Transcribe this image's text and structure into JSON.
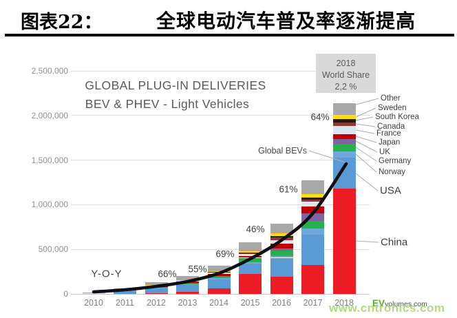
{
  "header": {
    "figure_label": "图表22：",
    "title": "全球电动汽车普及率逐渐提高"
  },
  "chart_data": {
    "type": "bar",
    "subtype": "stacked-bars-with-yoy-line",
    "title_lines": [
      "GLOBAL PLUG-IN DELIVERIES",
      "BEV & PHEV - Light Vehicles"
    ],
    "categories": [
      "2010",
      "2011",
      "2012",
      "2013",
      "2014",
      "2015",
      "2016",
      "2017",
      "2018"
    ],
    "unit": "vehicles",
    "ylim": [
      0,
      2500000
    ],
    "y_ticks": [
      "0",
      "500,000",
      "1,000,000",
      "1,500,000",
      "2,000,000",
      "2,500,000"
    ],
    "grid": true,
    "series": [
      {
        "name": "China",
        "color": "#ec1c24",
        "values": [
          0,
          0,
          8000,
          25000,
          60000,
          225000,
          190000,
          325000,
          1180000
        ]
      },
      {
        "name": "USA",
        "color": "#5b9bd5",
        "values": [
          5000,
          40000,
          60000,
          75000,
          105000,
          115000,
          215000,
          335000,
          350000
        ]
      },
      {
        "name": "Norway",
        "color": "#6fa8dc",
        "values": [
          0,
          2000,
          5000,
          12000,
          15000,
          15000,
          20000,
          70000,
          70000
        ]
      },
      {
        "name": "Germany",
        "color": "#27b04b",
        "values": [
          0,
          1000,
          3000,
          5000,
          10000,
          35000,
          60000,
          85000,
          80000
        ]
      },
      {
        "name": "UK",
        "color": "#8064a2",
        "values": [
          0,
          1000,
          4000,
          5000,
          10000,
          15000,
          25000,
          90000,
          55000
        ]
      },
      {
        "name": "Japan",
        "color": "#c00000",
        "values": [
          1000,
          5000,
          10000,
          18000,
          25000,
          20000,
          55000,
          75000,
          55000
        ]
      },
      {
        "name": "France",
        "color": "#dbe5f1",
        "values": [
          1000,
          3000,
          6000,
          10000,
          15000,
          25000,
          40000,
          50000,
          90000
        ]
      },
      {
        "name": "Canada",
        "color": "#8c3b34",
        "values": [
          0,
          1000,
          2000,
          3000,
          5000,
          10000,
          25000,
          30000,
          45000
        ]
      },
      {
        "name": "South Korea",
        "color": "#1f1a17",
        "values": [
          0,
          0,
          0,
          1000,
          2000,
          5000,
          20000,
          20000,
          35000
        ]
      },
      {
        "name": "Sweden",
        "color": "#ffe000",
        "values": [
          0,
          1000,
          2000,
          3000,
          8000,
          10000,
          30000,
          40000,
          45000
        ]
      },
      {
        "name": "(orange stripe)",
        "color": "#e2a243",
        "values": [
          0,
          0,
          0,
          0,
          0,
          10000,
          15000,
          0,
          0
        ]
      },
      {
        "name": "Other",
        "color": "#a8a8a8",
        "values": [
          5000,
          8000,
          30000,
          40000,
          65000,
          90000,
          95000,
          150000,
          130000
        ]
      }
    ],
    "yoy_line": {
      "label": "Y-O-Y",
      "color": "#0e0e15",
      "growth_labels": [
        {
          "year": "2012",
          "text": "66%"
        },
        {
          "year": "2013",
          "text": "55%"
        },
        {
          "year": "2014",
          "text": "69%"
        },
        {
          "year": "2015",
          "text": "46%"
        },
        {
          "year": "2017",
          "text": "61%"
        },
        {
          "year": "2018",
          "text": "64%"
        }
      ],
      "curve_values": [
        23000,
        46000,
        85000,
        139000,
        231000,
        393000,
        602000,
        903000,
        1458000
      ]
    },
    "annotations": {
      "world_share_box": {
        "lines": [
          "2018",
          "World Share",
          "2,2 %"
        ]
      },
      "global_bevs": "Global BEVs"
    },
    "legend": [
      {
        "label": "Other"
      },
      {
        "label": "Sweden"
      },
      {
        "label": "South Korea"
      },
      {
        "label": "Canada"
      },
      {
        "label": "France"
      },
      {
        "label": "Japan"
      },
      {
        "label": "UK"
      },
      {
        "label": "Germany"
      },
      {
        "label": "Norway"
      },
      {
        "label": "USA"
      },
      {
        "label": "China"
      }
    ],
    "legend_position": "right"
  },
  "watermark": "www.cntronics.com",
  "source_logo": {
    "ev": "EV",
    "domain": "volumes.com"
  }
}
